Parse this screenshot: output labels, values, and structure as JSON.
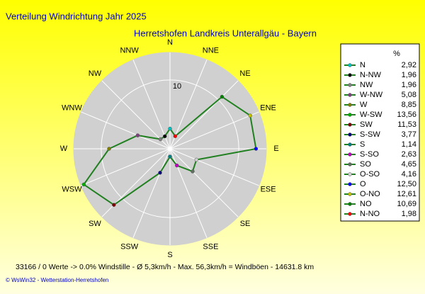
{
  "chart_data": {
    "type": "radar",
    "title": "Verteilung Windrichtung   Jahr 2025",
    "subtitle": "Herretshofen Landkreis Unterallgäu - Bayern",
    "axis_labels": [
      "N",
      "NNE",
      "NE",
      "ENE",
      "E",
      "ESE",
      "SE",
      "SSE",
      "S",
      "SSW",
      "SW",
      "WSW",
      "W",
      "WNW",
      "NW",
      "NNW"
    ],
    "legend_header": "%",
    "categories": [
      "N",
      "N-NW",
      "NW",
      "W-NW",
      "W",
      "W-SW",
      "SW",
      "S-SW",
      "S",
      "S-SO",
      "SO",
      "O-SO",
      "O",
      "O-NO",
      "NO",
      "N-NO"
    ],
    "values": [
      2.92,
      1.96,
      1.96,
      5.08,
      8.85,
      13.56,
      11.53,
      3.77,
      1.14,
      2.63,
      4.65,
      4.16,
      12.5,
      12.61,
      10.69,
      1.98
    ],
    "value_labels": [
      "2,92",
      "1,96",
      "1,96",
      "5,08",
      "8,85",
      "13,56",
      "11,53",
      "3,77",
      "1,14",
      "2,63",
      "4,65",
      "4,16",
      "12,50",
      "12,61",
      "10,69",
      "1,98"
    ],
    "marker_colors": [
      "#00c0c0",
      "#000000",
      "#808080",
      "#804080",
      "#808000",
      "#00b000",
      "#800000",
      "#000080",
      "#008080",
      "#c000c0",
      "#607060",
      "#d0d0d0",
      "#0000ff",
      "#c0c000",
      "#008000",
      "#ff0000"
    ],
    "color": "#208020",
    "rlim": [
      0,
      14
    ],
    "rticks": [
      10
    ],
    "footer": "33166 / 0 Werte  -> 0.0% Windstille   -   Ø 5,3km/h  -  Max. 56,3km/h = Windböen   -   14631.8 km",
    "credit": "© WsWin32  -  Wetterstation-Herretshofen"
  }
}
